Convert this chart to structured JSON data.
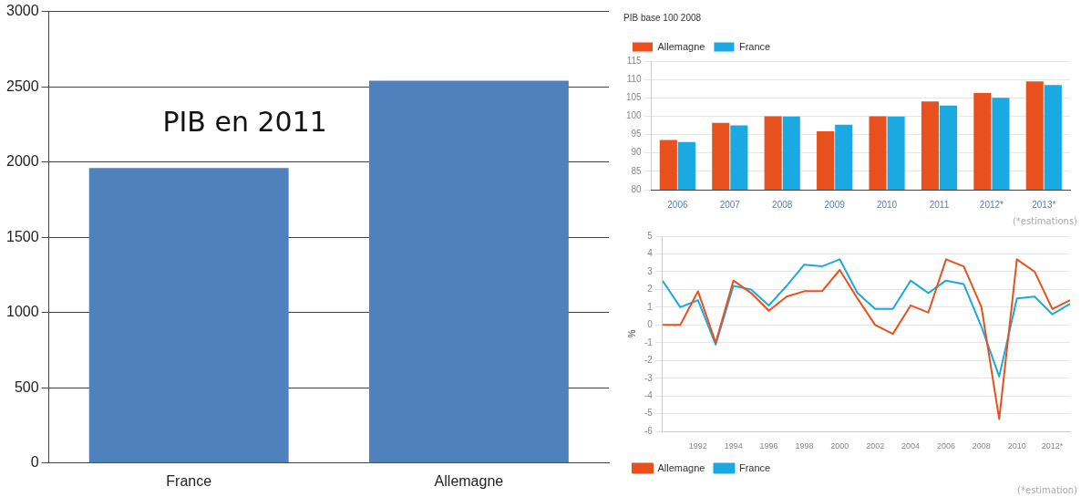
{
  "chart_data": [
    {
      "type": "bar",
      "categories": [
        "France",
        "Allemagne"
      ],
      "values": [
        1960,
        2540
      ],
      "color": "#4f81bd",
      "ylim": [
        0,
        3000
      ],
      "yticks": [
        0,
        500,
        1000,
        1500,
        2000,
        2500,
        3000
      ],
      "grid": "y",
      "legend": false,
      "annotations": [
        "PIB en 2011"
      ]
    },
    {
      "type": "bar",
      "title": "PIB base 100 2008",
      "categories": [
        "2006",
        "2007",
        "2008",
        "2009",
        "2010",
        "2011",
        "2012*",
        "2013*"
      ],
      "series": [
        {
          "name": "Allemagne",
          "color": "#e8501e",
          "values": [
            93.5,
            98.2,
            100,
            95.9,
            100,
            104,
            106.3,
            109.5
          ]
        },
        {
          "name": "France",
          "color": "#1aa9e0",
          "values": [
            93,
            97.5,
            99.9,
            97.7,
            99.9,
            102.9,
            105,
            108.5
          ]
        }
      ],
      "ylim": [
        80,
        115
      ],
      "yticks": [
        80,
        85,
        90,
        95,
        100,
        105,
        110,
        115
      ],
      "grid": "y",
      "legend": "top left",
      "annotations": [
        "(*estimations)"
      ]
    },
    {
      "type": "line",
      "ylabel": "%",
      "x": [
        1990,
        1991,
        1992,
        1993,
        1994,
        1995,
        1996,
        1997,
        1998,
        1999,
        2000,
        2001,
        2002,
        2003,
        2004,
        2005,
        2006,
        2007,
        2008,
        2009,
        2010,
        2011,
        2012,
        2013
      ],
      "series": [
        {
          "name": "Allemagne",
          "color": "#e8501e",
          "values": [
            0,
            0,
            1.9,
            -1.0,
            2.5,
            1.8,
            0.8,
            1.6,
            1.9,
            1.9,
            3.1,
            1.5,
            0.0,
            -0.5,
            1.1,
            0.7,
            3.7,
            3.3,
            1.0,
            -5.3,
            3.7,
            3.0,
            0.9,
            1.4
          ]
        },
        {
          "name": "France",
          "color": "#1aa9e0",
          "values": [
            2.5,
            1.0,
            1.4,
            -1.1,
            2.2,
            2.0,
            1.1,
            2.2,
            3.4,
            3.3,
            3.7,
            1.8,
            0.9,
            0.9,
            2.5,
            1.8,
            2.5,
            2.3,
            -0.1,
            -2.9,
            1.5,
            1.6,
            0.6,
            1.2
          ]
        }
      ],
      "xlim": [
        1990,
        2013
      ],
      "xticks": [
        1992,
        1994,
        1996,
        1998,
        2000,
        2002,
        2004,
        2006,
        2008,
        2010,
        {
          "value": 2012,
          "label": "2012*"
        }
      ],
      "ylim": [
        -6,
        5
      ],
      "yticks": [
        -6,
        -5,
        -4,
        -3,
        -2,
        -1,
        0,
        1,
        2,
        3,
        4,
        5
      ],
      "grid": "y",
      "marker": "none",
      "line_style": "solid",
      "legend": "bottom left",
      "annotations": [
        "(*estimation)"
      ]
    }
  ]
}
